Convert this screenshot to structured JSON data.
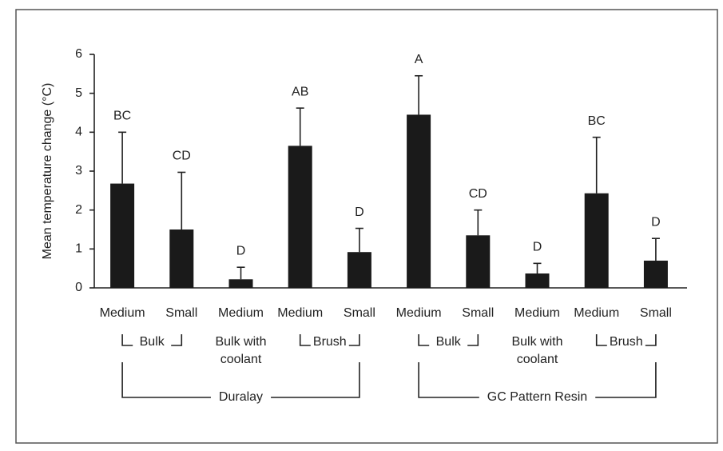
{
  "chart_data": {
    "type": "bar",
    "ylabel": "Mean temperature change (°C)",
    "categories": [
      "Medium",
      "Small",
      "Medium",
      "Medium",
      "Small",
      "Medium",
      "Small",
      "Medium",
      "Medium",
      "Small"
    ],
    "values": [
      2.68,
      1.5,
      0.22,
      3.65,
      0.92,
      4.45,
      1.35,
      0.37,
      2.43,
      0.7
    ],
    "errors": [
      1.32,
      1.47,
      0.31,
      0.97,
      0.61,
      1.0,
      0.65,
      0.26,
      1.44,
      0.57
    ],
    "annotations": [
      "BC",
      "CD",
      "D",
      "AB",
      "D",
      "A",
      "CD",
      "D",
      "BC",
      "D"
    ],
    "color": "#1a1a1a",
    "ylim": [
      0,
      6
    ],
    "yticks": [
      0,
      1,
      2,
      3,
      4,
      5,
      6
    ],
    "subgroups": [
      {
        "name": [
          "Bulk"
        ],
        "start": 0,
        "end": 1
      },
      {
        "name": [
          "Bulk with",
          "coolant"
        ],
        "start": 2,
        "end": 2
      },
      {
        "name": [
          "Brush"
        ],
        "start": 3,
        "end": 4
      },
      {
        "name": [
          "Bulk"
        ],
        "start": 5,
        "end": 6
      },
      {
        "name": [
          "Bulk with",
          "coolant"
        ],
        "start": 7,
        "end": 7
      },
      {
        "name": [
          "Brush"
        ],
        "start": 8,
        "end": 9
      }
    ],
    "groups": [
      {
        "name": "Duralay",
        "start": 0,
        "end": 4
      },
      {
        "name": "GC Pattern Resin",
        "start": 5,
        "end": 9
      }
    ]
  }
}
